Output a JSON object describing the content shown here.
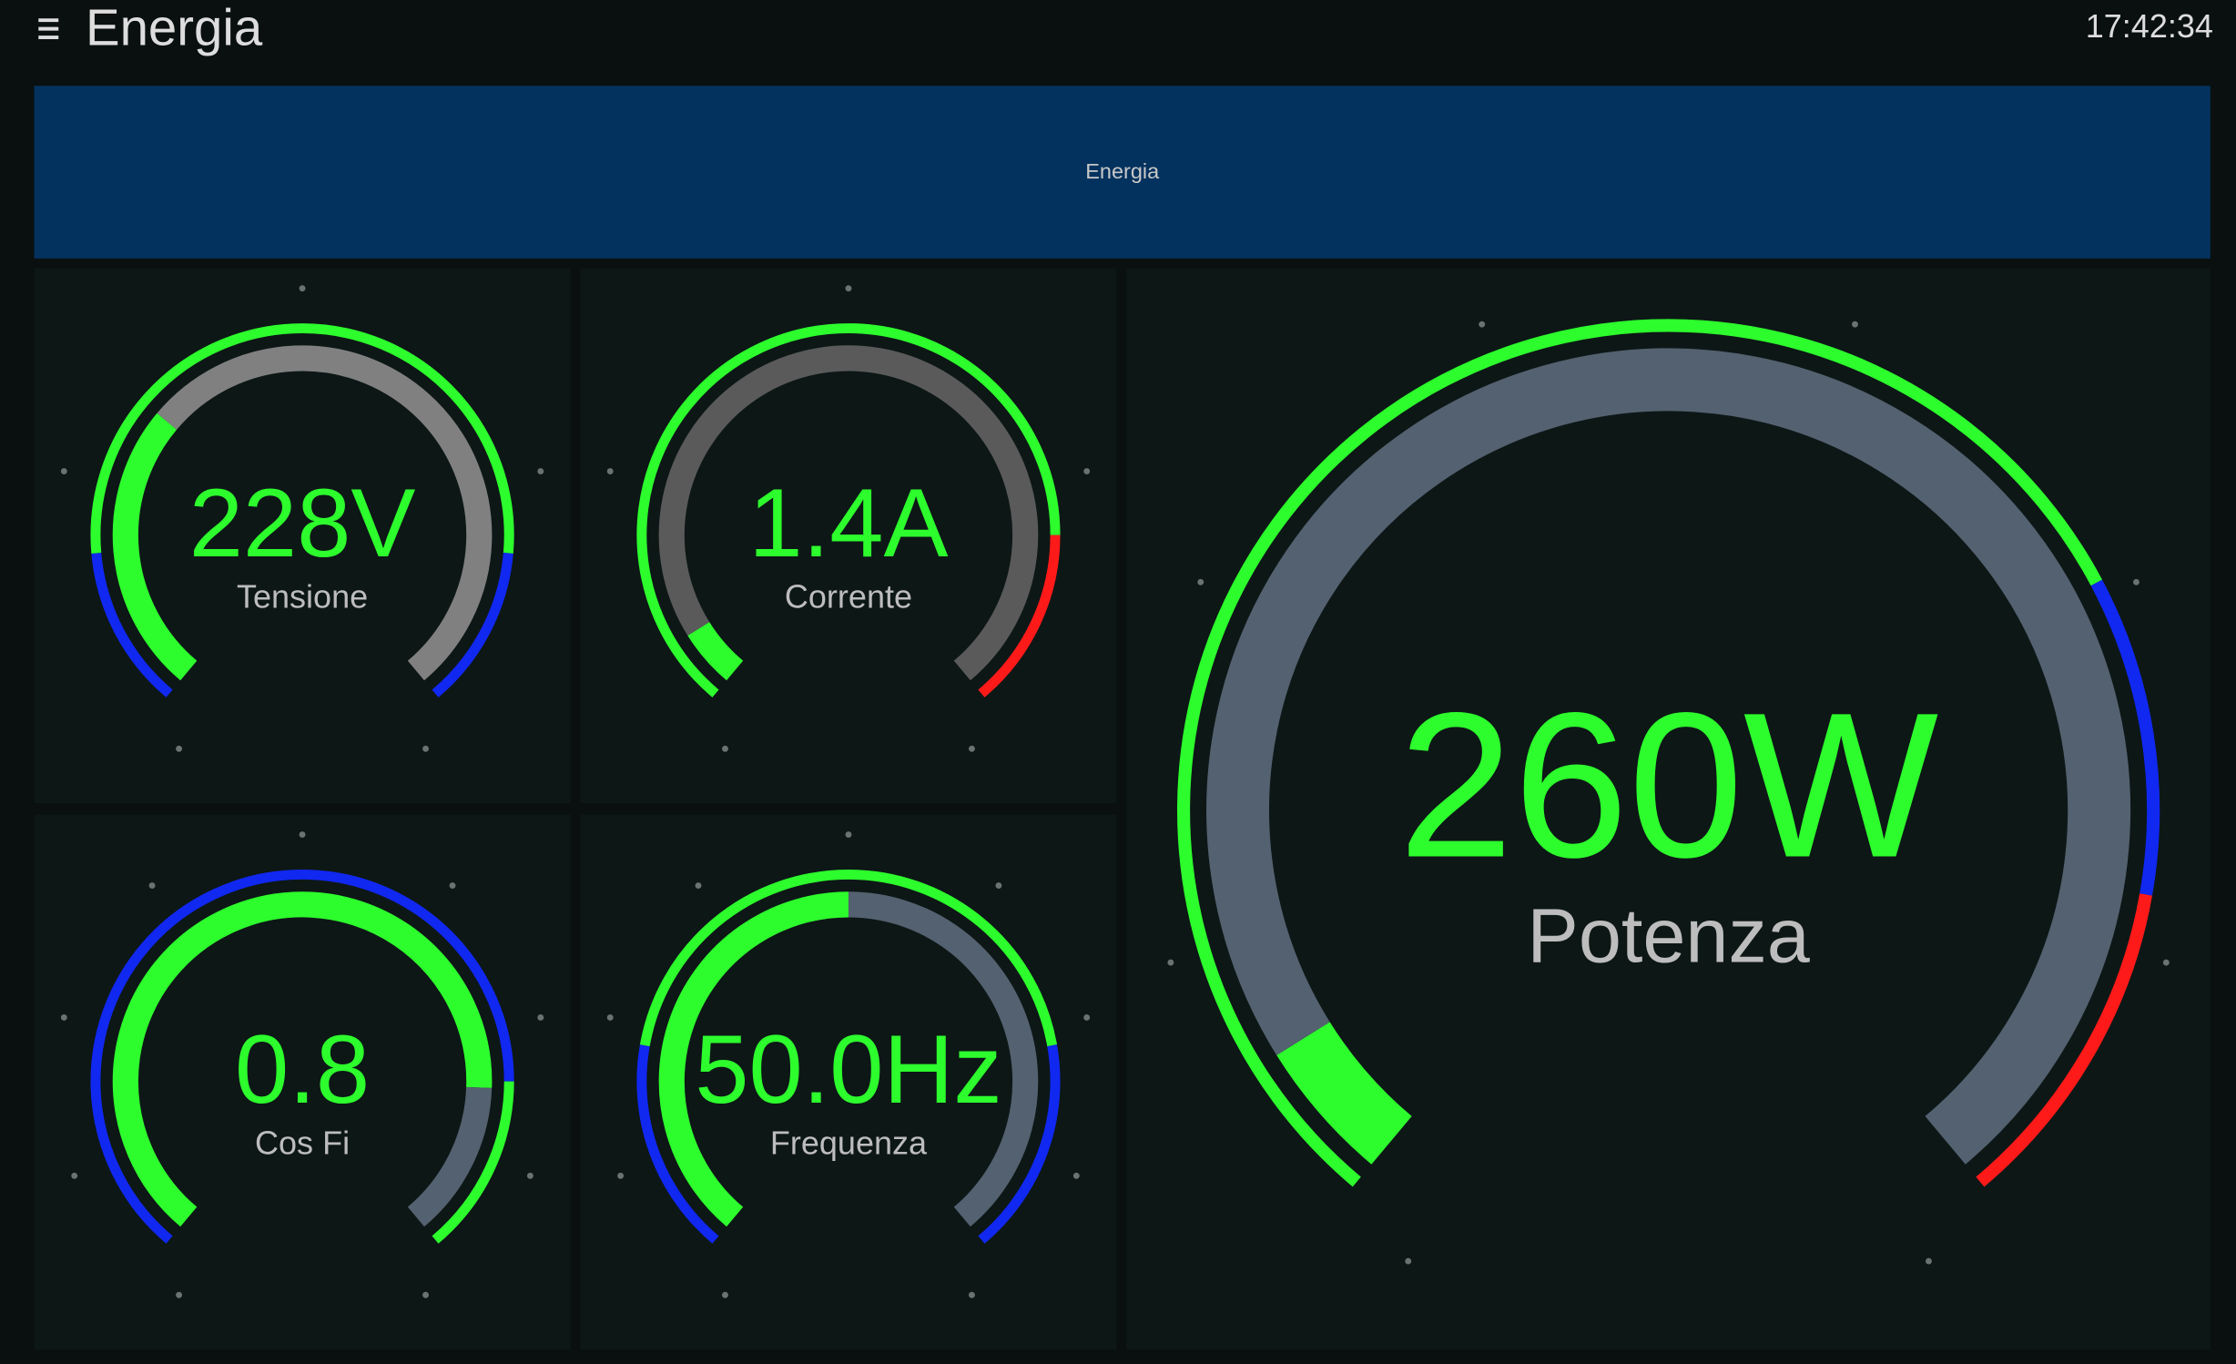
{
  "header": {
    "title": "Energia",
    "time": "17:42:34"
  },
  "banner": {
    "title": "Energia"
  },
  "gauges": [
    {
      "value": "228V",
      "label": "Tensione"
    },
    {
      "value": "1.4A",
      "label": "Corrente"
    },
    {
      "value": "0.8",
      "label": "Cos Fi"
    },
    {
      "value": "50.0Hz",
      "label": "Frequenza"
    },
    {
      "value": "260W",
      "label": "Potenza"
    }
  ]
}
